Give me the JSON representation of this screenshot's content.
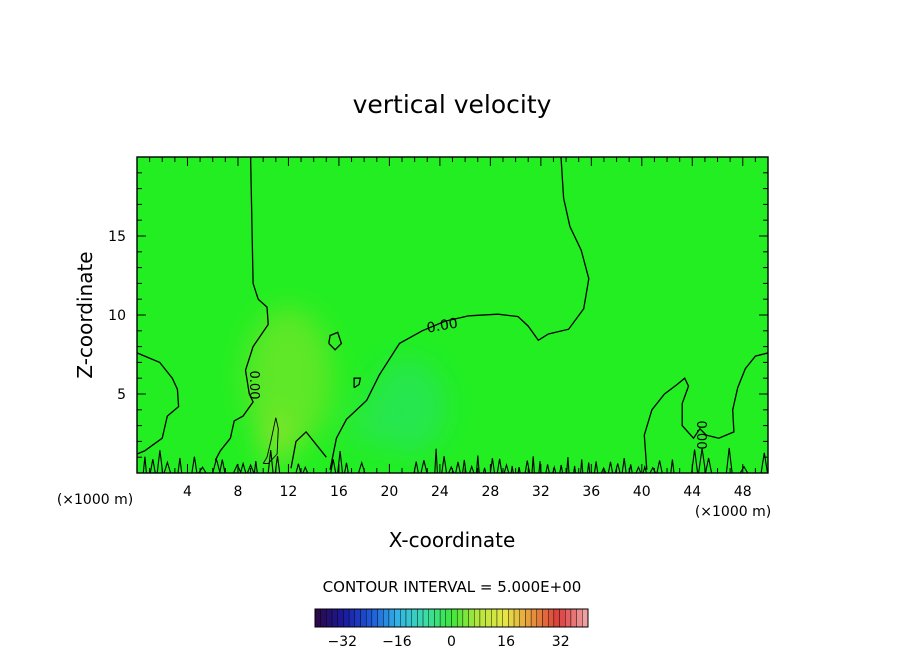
{
  "chart_data": {
    "type": "heatmap",
    "title": "vertical velocity",
    "xlabel": "X-coordinate",
    "ylabel": "Z-coordinate",
    "x_unit_left": "(×1000 m)",
    "x_unit_right": "(×1000 m)",
    "xlim": [
      0,
      50
    ],
    "ylim": [
      0,
      20
    ],
    "x_ticks": [
      4,
      8,
      12,
      16,
      20,
      24,
      28,
      32,
      36,
      40,
      44,
      48
    ],
    "y_ticks": [
      5,
      10,
      15
    ],
    "contour_interval_text": "CONTOUR INTERVAL = 5.000E+00",
    "contour_label": "0.00",
    "field_color": "#22ee22",
    "colorbar": {
      "range": [
        -40,
        40
      ],
      "ticks": [
        -32,
        -16,
        0,
        16,
        32
      ],
      "colors": [
        "#2a0a4a",
        "#1a1aa0",
        "#1e5ad8",
        "#32b4e6",
        "#3cdcaa",
        "#3ce63c",
        "#b4e63c",
        "#e6e646",
        "#e6963c",
        "#dc3c3c",
        "#f0a0a0"
      ]
    },
    "zero_contours": [
      [
        [
          9.0,
          20
        ],
        [
          9.2,
          12
        ],
        [
          9.6,
          11
        ],
        [
          10.3,
          10.5
        ],
        [
          10.4,
          9.4
        ],
        [
          9.2,
          8
        ],
        [
          8.6,
          6.5
        ],
        [
          8.9,
          5
        ],
        [
          9.2,
          4.5
        ],
        [
          8.4,
          3.6
        ],
        [
          7.7,
          3.3
        ],
        [
          7.4,
          2.2
        ],
        [
          6.6,
          1.4
        ],
        [
          6.2,
          0.8
        ]
      ],
      [
        [
          0,
          7.6
        ],
        [
          1.8,
          7.0
        ],
        [
          2.8,
          6.0
        ],
        [
          3.2,
          5.3
        ],
        [
          3.3,
          4.2
        ],
        [
          2.4,
          3.6
        ],
        [
          2.0,
          2.2
        ],
        [
          0.6,
          1.4
        ],
        [
          0,
          1.2
        ]
      ],
      [
        [
          15.3,
          0.2
        ],
        [
          15.8,
          2.2
        ],
        [
          16.6,
          3.4
        ],
        [
          18.2,
          4.6
        ],
        [
          19.2,
          6.2
        ],
        [
          20.8,
          8.2
        ],
        [
          22.6,
          9.0
        ],
        [
          24.4,
          9.6
        ],
        [
          26.3,
          9.95
        ],
        [
          28.6,
          10.05
        ],
        [
          30.2,
          9.9
        ],
        [
          31.0,
          9.3
        ],
        [
          31.8,
          8.4
        ],
        [
          32.6,
          8.8
        ],
        [
          34.2,
          9.1
        ],
        [
          35.4,
          10.4
        ],
        [
          35.8,
          12.3
        ],
        [
          35.2,
          14.1
        ],
        [
          34.3,
          15.6
        ],
        [
          33.8,
          17.4
        ],
        [
          33.6,
          20
        ]
      ],
      [
        [
          40.4,
          0.2
        ],
        [
          40.2,
          2.4
        ],
        [
          40.8,
          4.0
        ],
        [
          41.8,
          5.0
        ],
        [
          42.8,
          5.6
        ],
        [
          43.4,
          6.0
        ],
        [
          43.7,
          5.5
        ],
        [
          43.2,
          4.4
        ],
        [
          43.2,
          3.0
        ],
        [
          44.1,
          2.2
        ],
        [
          44.6,
          2.8
        ],
        [
          45.1,
          2.4
        ],
        [
          46.1,
          2.2
        ],
        [
          47.3,
          2.6
        ],
        [
          47.2,
          4.0
        ],
        [
          47.6,
          5.4
        ],
        [
          48.2,
          6.6
        ],
        [
          49.0,
          7.4
        ],
        [
          50.0,
          7.6
        ]
      ],
      [
        [
          12.2,
          0.3
        ],
        [
          12.6,
          2.0
        ],
        [
          13.4,
          2.6
        ],
        [
          14.4,
          1.6
        ],
        [
          15.0,
          1.0
        ]
      ],
      [
        [
          15.2,
          8.2
        ],
        [
          15.7,
          7.8
        ],
        [
          16.2,
          8.2
        ],
        [
          15.9,
          8.9
        ],
        [
          15.3,
          8.7
        ],
        [
          15.2,
          8.2
        ]
      ],
      [
        [
          17.2,
          5.4
        ],
        [
          17.6,
          5.6
        ],
        [
          17.7,
          6.0
        ],
        [
          17.2,
          6.0
        ],
        [
          17.2,
          5.4
        ]
      ]
    ],
    "positive_contour": [
      [
        10.0,
        0.6
      ],
      [
        10.3,
        1.0
      ],
      [
        10.6,
        2.0
      ],
      [
        11.0,
        3.5
      ],
      [
        11.2,
        2.8
      ],
      [
        11.1,
        1.2
      ],
      [
        10.4,
        0.6
      ],
      [
        10.0,
        0.6
      ]
    ],
    "anomalies": [
      {
        "x": 12.0,
        "z": 6.0,
        "rx": 3.5,
        "rz": 4.5,
        "color": "#a8e02a",
        "alpha": 0.45
      },
      {
        "x": 11.0,
        "z": 2.0,
        "rx": 1.2,
        "rz": 1.8,
        "color": "#b8e030",
        "alpha": 0.5
      },
      {
        "x": 21.5,
        "z": 4.2,
        "rx": 3.0,
        "rz": 3.0,
        "color": "#2ee07a",
        "alpha": 0.5
      },
      {
        "x": 18.0,
        "z": 3.0,
        "rx": 1.5,
        "rz": 1.5,
        "color": "#30e070",
        "alpha": 0.35
      }
    ]
  }
}
